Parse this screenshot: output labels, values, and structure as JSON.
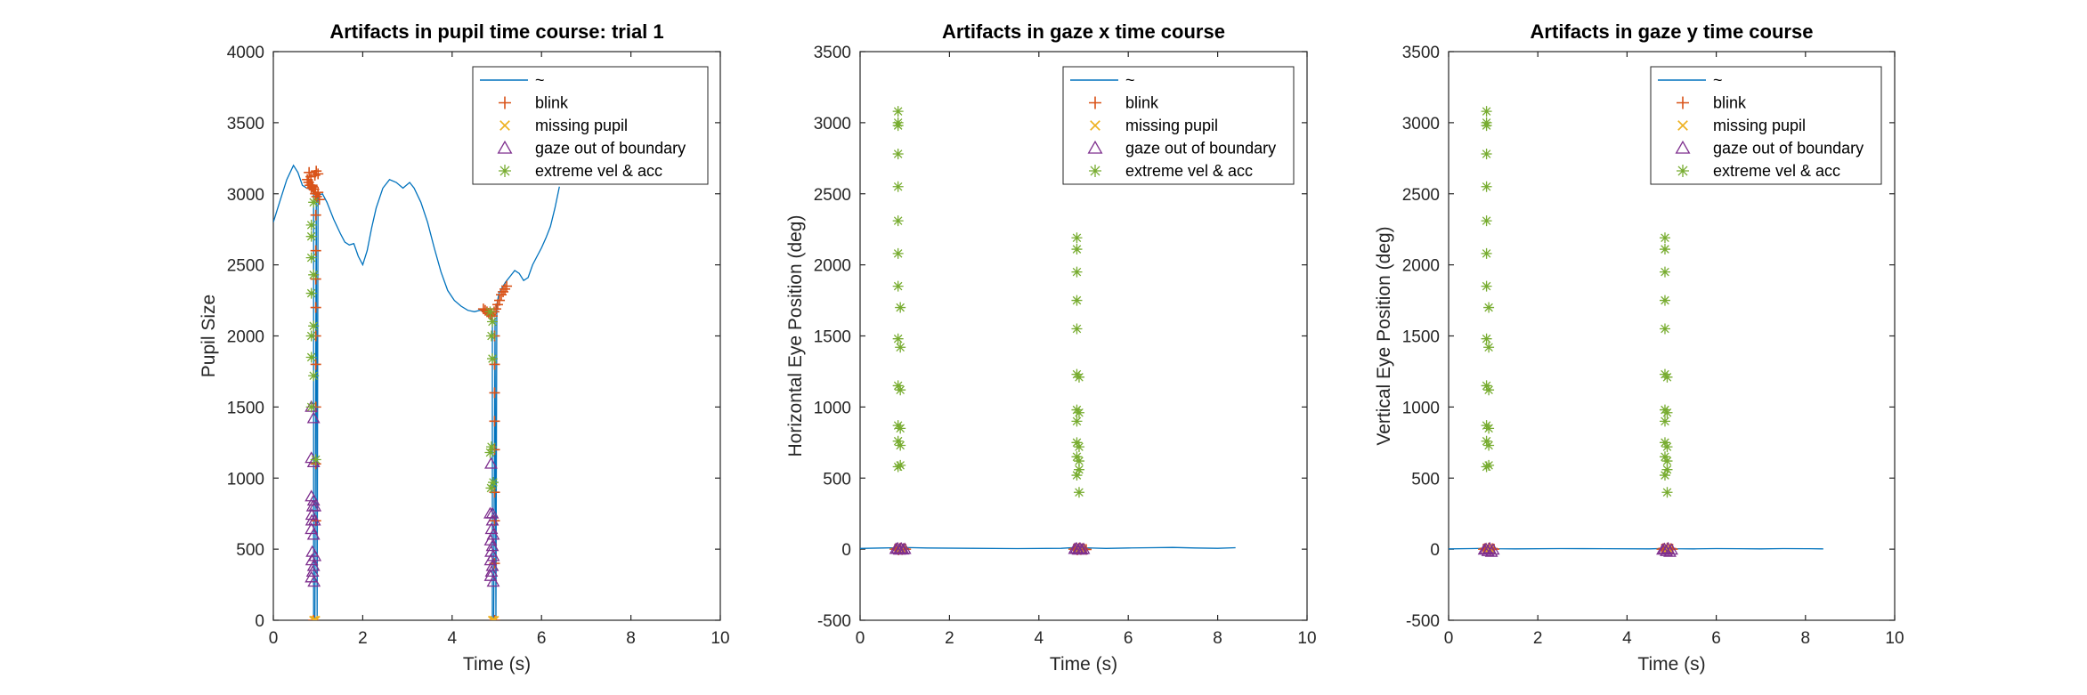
{
  "chart_data": [
    {
      "type": "line",
      "title": "Artifacts in pupil time course: trial 1",
      "xlabel": "Time (s)",
      "ylabel": "Pupil Size",
      "xlim": [
        0,
        10
      ],
      "ylim": [
        0,
        4000
      ],
      "xticks": [
        0,
        2,
        4,
        6,
        8,
        10
      ],
      "yticks": [
        0,
        500,
        1000,
        1500,
        2000,
        2500,
        3000,
        3500,
        4000
      ],
      "legend_position": "top-right",
      "series": [
        {
          "name": "~",
          "marker": "line",
          "color": "#0072BD",
          "x": [
            0,
            0.15,
            0.3,
            0.45,
            0.55,
            0.65,
            0.75,
            0.85,
            0.88,
            0.9,
            0.9,
            0.93,
            0.96,
            0.98,
            1.0,
            1.02,
            1.1,
            1.2,
            1.35,
            1.5,
            1.6,
            1.7,
            1.8,
            1.9,
            2.0,
            2.1,
            2.2,
            2.3,
            2.45,
            2.6,
            2.75,
            2.9,
            3.05,
            3.15,
            3.3,
            3.45,
            3.6,
            3.75,
            3.9,
            4.05,
            4.2,
            4.35,
            4.5,
            4.62,
            4.72,
            4.8,
            4.85,
            4.88,
            4.9,
            4.9,
            4.93,
            4.96,
            4.98,
            5.0,
            5.05,
            5.12,
            5.2,
            5.3,
            5.4,
            5.5,
            5.6,
            5.7,
            5.8,
            5.9,
            6.0,
            6.1,
            6.2,
            6.3,
            6.4
          ],
          "y": [
            2800,
            2950,
            3100,
            3200,
            3150,
            3060,
            3040,
            3030,
            3020,
            3000,
            0,
            0,
            3000,
            0,
            3010,
            2990,
            3000,
            2940,
            2820,
            2720,
            2660,
            2640,
            2650,
            2560,
            2500,
            2600,
            2760,
            2900,
            3040,
            3100,
            3080,
            3040,
            3080,
            3040,
            2940,
            2800,
            2620,
            2450,
            2320,
            2250,
            2210,
            2180,
            2170,
            2180,
            2170,
            2160,
            2140,
            2120,
            2100,
            0,
            0,
            2130,
            0,
            2220,
            2300,
            2340,
            2380,
            2420,
            2460,
            2440,
            2390,
            2410,
            2500,
            2560,
            2620,
            2690,
            2770,
            2900,
            3050
          ]
        },
        {
          "name": "blink",
          "marker": "plus",
          "color": "#D95319",
          "x": [
            0.76,
            0.79,
            0.82,
            0.85,
            0.88,
            0.91,
            0.94,
            0.97,
            1.0,
            1.03,
            0.8,
            0.84,
            0.87,
            0.93,
            0.96,
            1.0,
            0.9,
            0.95,
            0.95,
            0.95,
            0.95,
            0.95,
            0.95,
            0.95,
            0.95,
            0.95,
            4.7,
            4.74,
            4.78,
            4.82,
            4.86,
            4.9,
            4.94,
            4.98,
            5.02,
            5.06,
            5.1,
            5.14,
            5.18,
            5.22,
            4.95,
            4.95,
            4.95,
            4.95,
            4.95,
            4.95,
            4.95,
            4.95,
            4.95
          ],
          "y": [
            3100,
            3080,
            3060,
            3040,
            3050,
            3030,
            3000,
            2980,
            3010,
            2960,
            3150,
            3120,
            3060,
            3130,
            3160,
            3140,
            0,
            2850,
            2600,
            2400,
            2200,
            2000,
            1800,
            1500,
            1100,
            700,
            2190,
            2180,
            2170,
            2160,
            2150,
            2140,
            2170,
            2190,
            2220,
            2250,
            2290,
            2310,
            2330,
            2350,
            2000,
            1800,
            1600,
            1400,
            1200,
            900,
            700,
            400,
            0
          ]
        },
        {
          "name": "missing pupil",
          "marker": "x",
          "color": "#EDB120",
          "x": [
            0.9,
            0.92,
            0.95,
            4.9,
            4.92,
            4.95
          ],
          "y": [
            0,
            0,
            0,
            0,
            0,
            0
          ]
        },
        {
          "name": "gaze out of boundary",
          "marker": "triangle",
          "color": "#7E2F8E",
          "x": [
            0.85,
            0.9,
            0.85,
            0.9,
            0.85,
            0.9,
            0.88,
            0.86,
            0.92,
            0.85,
            0.9,
            0.87,
            0.93,
            0.86,
            0.9,
            0.88,
            0.85,
            0.91,
            0.86,
            0.93,
            4.85,
            4.9,
            4.88,
            4.92,
            4.86,
            4.9,
            4.87,
            4.92,
            4.86,
            4.9,
            4.88,
            4.86,
            4.92,
            4.87,
            4.9
          ],
          "y": [
            1500,
            1420,
            1140,
            1110,
            870,
            840,
            800,
            740,
            700,
            640,
            600,
            480,
            450,
            420,
            380,
            340,
            300,
            270,
            700,
            800,
            750,
            700,
            640,
            600,
            560,
            520,
            480,
            450,
            420,
            380,
            340,
            310,
            270,
            1100,
            750
          ]
        },
        {
          "name": "extreme vel & acc",
          "marker": "star",
          "color": "#77AC30",
          "x": [
            0.85,
            0.85,
            0.85,
            0.9,
            0.85,
            0.9,
            0.85,
            0.95,
            0.85,
            0.9,
            0.85,
            0.9,
            4.85,
            4.9,
            4.88,
            4.85,
            4.92,
            4.87,
            4.9,
            4.88
          ],
          "y": [
            2780,
            2550,
            2300,
            2070,
            1850,
            1720,
            1500,
            1130,
            2700,
            2430,
            2000,
            2940,
            2170,
            1840,
            1220,
            1180,
            970,
            930,
            2100,
            2000
          ]
        }
      ]
    },
    {
      "type": "scatter",
      "title": "Artifacts in gaze x time course",
      "xlabel": "Time (s)",
      "ylabel": "Horizontal Eye Position (deg)",
      "xlim": [
        0,
        10
      ],
      "ylim": [
        -500,
        3500
      ],
      "xticks": [
        0,
        2,
        4,
        6,
        8,
        10
      ],
      "yticks": [
        -500,
        0,
        500,
        1000,
        1500,
        2000,
        2500,
        3000,
        3500
      ],
      "legend_position": "top-right",
      "series": [
        {
          "name": "~",
          "marker": "line",
          "color": "#0072BD",
          "x": [
            0,
            0.5,
            0.85,
            0.95,
            1.5,
            2.5,
            3.5,
            4.5,
            4.85,
            4.95,
            5.5,
            6,
            6.5,
            7,
            7.5,
            8,
            8.4
          ],
          "y": [
            5,
            8,
            10,
            12,
            8,
            6,
            4,
            6,
            12,
            10,
            5,
            8,
            10,
            12,
            8,
            6,
            10
          ]
        },
        {
          "name": "blink",
          "marker": "plus",
          "color": "#D95319",
          "x": [
            0.78,
            0.82,
            0.86,
            0.9,
            0.94,
            0.98,
            1.02,
            4.78,
            4.82,
            4.86,
            4.9,
            4.94,
            4.98,
            5.02,
            5.06
          ],
          "y": [
            0,
            5,
            -5,
            8,
            -3,
            4,
            0,
            0,
            5,
            -5,
            8,
            -3,
            4,
            0,
            -2
          ]
        },
        {
          "name": "missing pupil",
          "marker": "x",
          "color": "#EDB120",
          "x": [
            0.9,
            0.93,
            4.9,
            4.93
          ],
          "y": [
            0,
            0,
            0,
            0
          ]
        },
        {
          "name": "gaze out of boundary",
          "marker": "triangle",
          "color": "#7E2F8E",
          "x": [
            0.8,
            0.84,
            0.88,
            0.92,
            0.96,
            1.0,
            4.8,
            4.84,
            4.88,
            4.92,
            4.96,
            5.0
          ],
          "y": [
            0,
            5,
            -5,
            4,
            -4,
            0,
            0,
            5,
            -5,
            4,
            -4,
            0
          ]
        },
        {
          "name": "extreme vel & acc",
          "marker": "star",
          "color": "#77AC30",
          "x": [
            0.85,
            0.85,
            0.85,
            0.85,
            0.85,
            0.85,
            0.85,
            0.9,
            0.85,
            0.9,
            0.85,
            0.9,
            0.85,
            0.9,
            0.85,
            0.9,
            0.85,
            0.9,
            0.85,
            4.85,
            4.85,
            4.85,
            4.85,
            4.85,
            4.85,
            4.9,
            4.85,
            4.9,
            4.85,
            4.9,
            4.85,
            4.9,
            4.85,
            4.9,
            4.85,
            4.9
          ],
          "y": [
            3080,
            2980,
            2780,
            2550,
            2310,
            2080,
            1850,
            1700,
            1480,
            1420,
            1150,
            1120,
            870,
            850,
            760,
            730,
            580,
            590,
            3000,
            2190,
            2110,
            1950,
            1750,
            1550,
            1230,
            1210,
            980,
            960,
            750,
            720,
            650,
            560,
            520,
            400,
            900,
            620
          ]
        }
      ]
    },
    {
      "type": "scatter",
      "title": "Artifacts in gaze y time course",
      "xlabel": "Time (s)",
      "ylabel": "Vertical Eye Position (deg)",
      "xlim": [
        0,
        10
      ],
      "ylim": [
        -500,
        3500
      ],
      "xticks": [
        0,
        2,
        4,
        6,
        8,
        10
      ],
      "yticks": [
        -500,
        0,
        500,
        1000,
        1500,
        2000,
        2500,
        3000,
        3500
      ],
      "legend_position": "top-right",
      "series": [
        {
          "name": "~",
          "marker": "line",
          "color": "#0072BD",
          "x": [
            0,
            0.5,
            0.85,
            0.95,
            1.5,
            2.5,
            3.5,
            4.5,
            4.85,
            4.95,
            5.5,
            6,
            6.5,
            7,
            7.5,
            8,
            8.4
          ],
          "y": [
            2,
            4,
            6,
            3,
            2,
            4,
            3,
            2,
            5,
            3,
            2,
            4,
            3,
            2,
            4,
            3,
            2
          ]
        },
        {
          "name": "blink",
          "marker": "plus",
          "color": "#D95319",
          "x": [
            0.78,
            0.82,
            0.86,
            0.9,
            0.94,
            0.98,
            1.02,
            4.78,
            4.82,
            4.86,
            4.9,
            4.94,
            4.98,
            5.02
          ],
          "y": [
            0,
            5,
            -5,
            8,
            -3,
            4,
            0,
            0,
            5,
            -5,
            8,
            -3,
            4,
            0
          ]
        },
        {
          "name": "missing pupil",
          "marker": "x",
          "color": "#EDB120",
          "x": [
            0.9,
            0.93,
            4.9,
            4.93
          ],
          "y": [
            0,
            0,
            0,
            0
          ]
        },
        {
          "name": "gaze out of boundary",
          "marker": "triangle",
          "color": "#7E2F8E",
          "x": [
            0.8,
            0.84,
            0.88,
            0.92,
            0.96,
            1.0,
            4.8,
            4.84,
            4.88,
            4.92,
            4.96,
            5.0
          ],
          "y": [
            -5,
            0,
            -15,
            5,
            -20,
            -5,
            -5,
            0,
            -15,
            5,
            -20,
            -5
          ]
        },
        {
          "name": "extreme vel & acc",
          "marker": "star",
          "color": "#77AC30",
          "x": [
            0.85,
            0.85,
            0.85,
            0.85,
            0.85,
            0.85,
            0.85,
            0.9,
            0.85,
            0.9,
            0.85,
            0.9,
            0.85,
            0.9,
            0.85,
            0.9,
            0.85,
            0.9,
            0.85,
            4.85,
            4.85,
            4.85,
            4.85,
            4.85,
            4.85,
            4.9,
            4.85,
            4.9,
            4.85,
            4.9,
            4.85,
            4.9,
            4.85,
            4.9,
            4.85,
            4.9
          ],
          "y": [
            3080,
            2980,
            2780,
            2550,
            2310,
            2080,
            1850,
            1700,
            1480,
            1420,
            1150,
            1120,
            870,
            850,
            760,
            730,
            580,
            590,
            3000,
            2190,
            2110,
            1950,
            1750,
            1550,
            1230,
            1210,
            980,
            960,
            750,
            720,
            650,
            560,
            520,
            400,
            900,
            620
          ]
        }
      ]
    }
  ]
}
